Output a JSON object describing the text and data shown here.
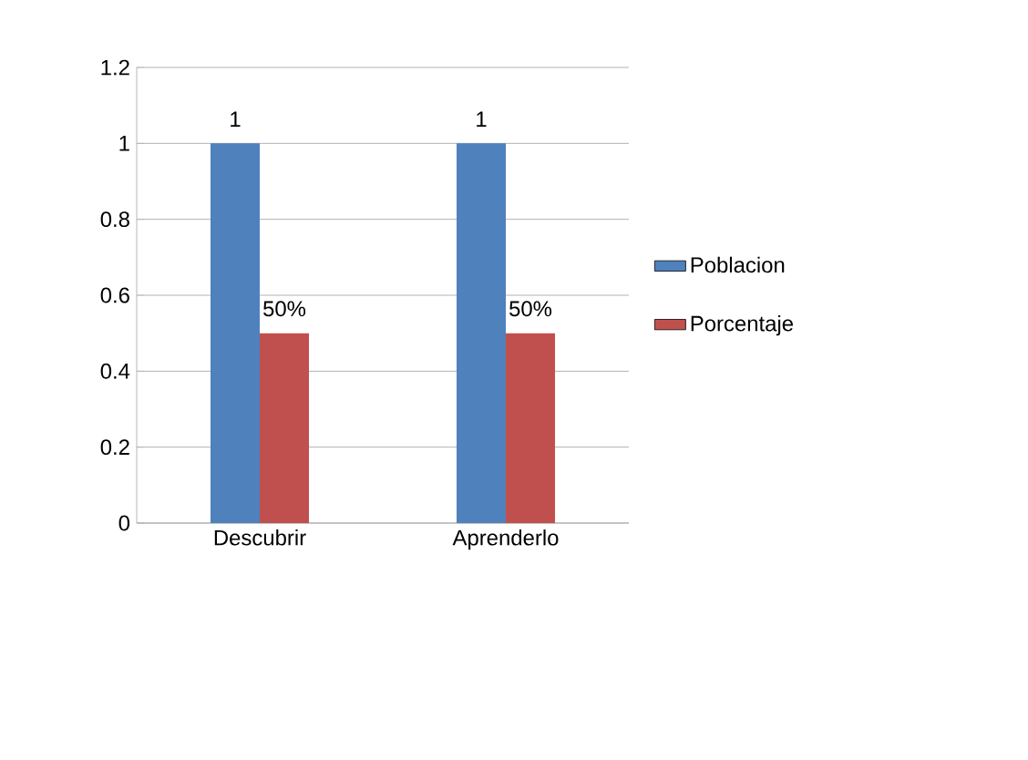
{
  "chart_data": {
    "type": "bar",
    "categories": [
      "Descubrir",
      "Aprenderlo"
    ],
    "series": [
      {
        "name": "Poblacion",
        "color": "#4f81bd",
        "values": [
          1,
          1
        ],
        "value_labels": [
          "1",
          "1"
        ]
      },
      {
        "name": "Porcentaje",
        "color": "#c0504d",
        "values": [
          0.5,
          0.5
        ],
        "value_labels": [
          "50%",
          "50%"
        ]
      }
    ],
    "ylim": [
      0,
      1.2
    ],
    "yticks": [
      0,
      0.2,
      0.4,
      0.6,
      0.8,
      1,
      1.2
    ],
    "grid": "y",
    "legend": "right"
  }
}
